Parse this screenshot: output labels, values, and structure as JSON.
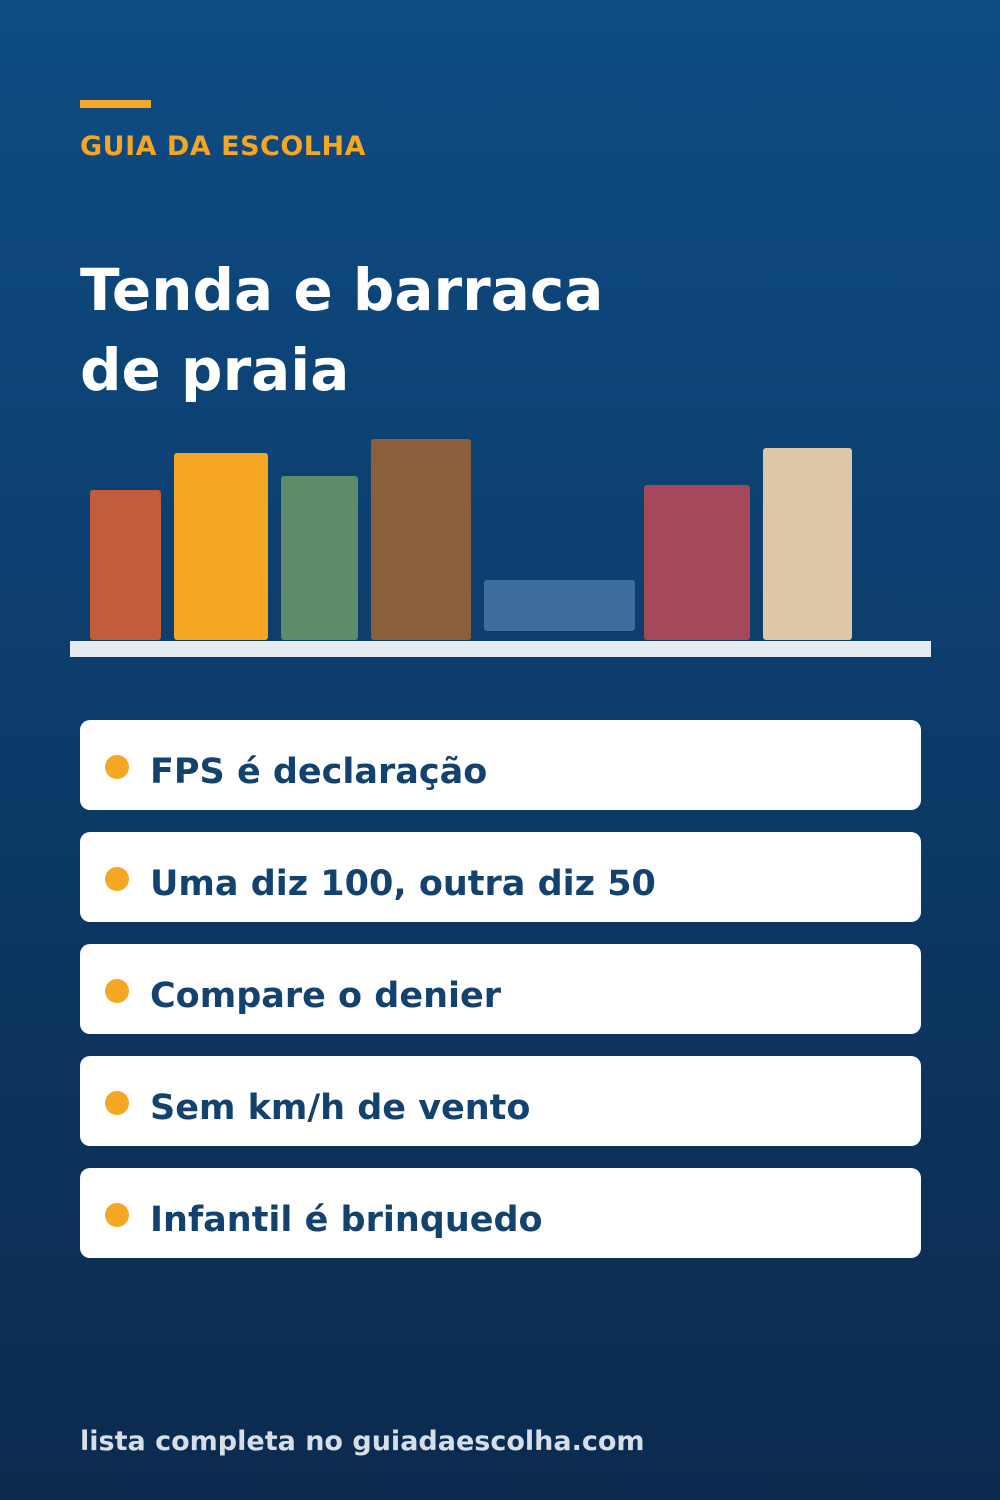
{
  "brand": "GUIA DA ESCOLHA",
  "title_lines": [
    "Tenda e barraca",
    "de praia"
  ],
  "illustration": {
    "icon": "bookshelf-icon",
    "shelf_color": "#e6ebf2",
    "book_colors": [
      "#c45c3b",
      "#f5a623",
      "#5e8c6a",
      "#8b5e3c",
      "#3e6e9e",
      "#a6485a",
      "#dcc8a4"
    ]
  },
  "tips": [
    {
      "text": "FPS é declaração"
    },
    {
      "text": "Uma diz 100, outra diz 50"
    },
    {
      "text": "Compare o denier"
    },
    {
      "text": "Sem km/h de vento"
    },
    {
      "text": "Infantil é brinquedo"
    }
  ],
  "footer": "lista completa no guiadaescolha.com",
  "colors": {
    "accent": "#f5a623",
    "text_dark": "#14426f",
    "background_top": "#0e4c84",
    "background_bottom": "#0b2a4e"
  }
}
